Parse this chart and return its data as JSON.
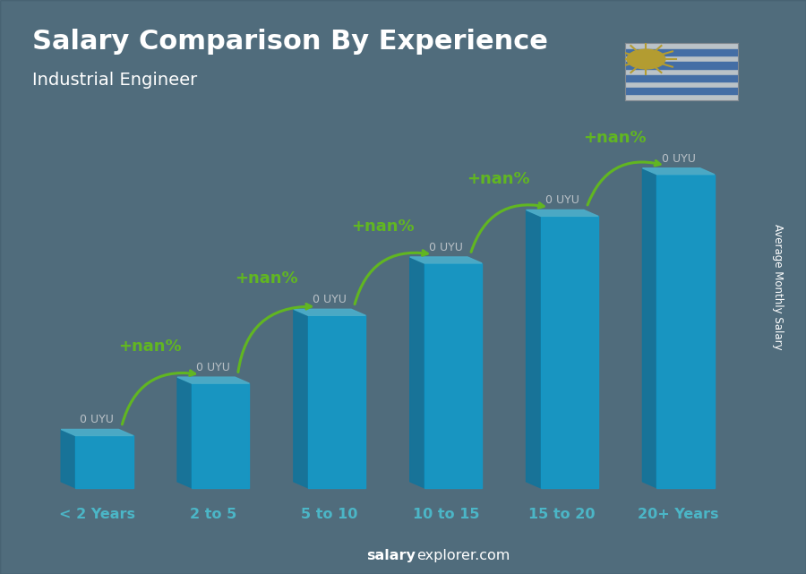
{
  "title": "Salary Comparison By Experience",
  "subtitle": "Industrial Engineer",
  "ylabel": "Average Monthly Salary",
  "website": "salaryexplorer.com",
  "website_bold": "salary",
  "website_regular": "explorer.com",
  "categories": [
    "< 2 Years",
    "2 to 5",
    "5 to 10",
    "10 to 15",
    "15 to 20",
    "20+ Years"
  ],
  "values": [
    1.0,
    2.0,
    3.3,
    4.3,
    5.2,
    6.0
  ],
  "bar_label": "0 UYU",
  "pct_label": "+nan%",
  "bar_face_color": "#00bfff",
  "bar_left_color": "#0088bb",
  "bar_top_color": "#55ddff",
  "arrow_color": "#77ee00",
  "label_color": "#ffffff",
  "title_color": "#ffffff",
  "subtitle_color": "#ffffff",
  "bg_color": "#6b8a9a",
  "figsize": [
    9.0,
    6.41
  ],
  "dpi": 100,
  "flag_stripes": [
    "#4a7fcb",
    "#4a7fcb",
    "#4a7fcb",
    "#4a7fcb"
  ],
  "flag_sun_color": "#f5c518"
}
